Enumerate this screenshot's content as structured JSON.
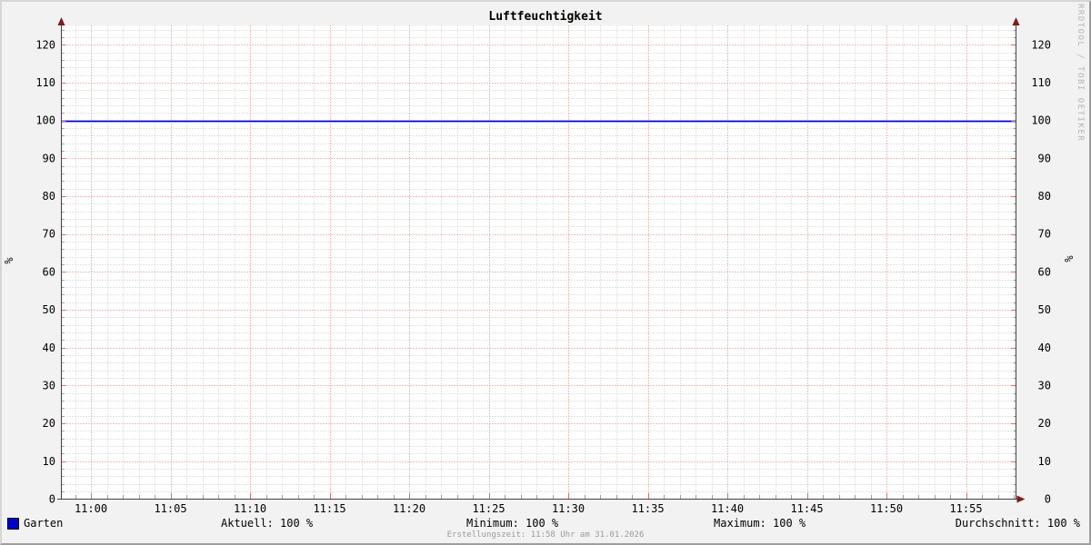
{
  "title": "Luftfeuchtigkeit",
  "watermark": "RRDTOOL / TOBI OETIKER",
  "axis_unit_left": "%",
  "axis_unit_right": "%",
  "legend": {
    "series_label": "Garten",
    "series_color": "#0000cc"
  },
  "stats": {
    "aktuell": "Aktuell: 100 %",
    "minimum": "Minimum: 100 %",
    "maximum": "Maximum: 100 %",
    "durchschnitt": "Durchschnitt: 100 %"
  },
  "footer": "Erstellungszeit: 11:58 Uhr am 31.01.2026",
  "colors": {
    "background": "#f2f2f2",
    "canvas": "#ffffff",
    "minor_grid": "#c9c9c9",
    "major_grid": "#e08080",
    "minor_tick": "#a0a0a0",
    "major_tick": "#d87070",
    "axis": "#404040",
    "arrow": "#7d1b1b",
    "series": "#0000cc",
    "text": "#000000",
    "footer_text": "#9a9a9a",
    "watermark_text": "#b5b5b5"
  },
  "chart_data": {
    "type": "line",
    "title": "Luftfeuchtigkeit",
    "ylabel": "%",
    "ylim": [
      0,
      125
    ],
    "y_major_ticks": [
      0,
      10,
      20,
      30,
      40,
      50,
      60,
      70,
      80,
      90,
      100,
      110,
      120
    ],
    "y_minor_step": 2,
    "x_tick_labels": [
      "11:00",
      "11:05",
      "11:10",
      "11:15",
      "11:20",
      "11:25",
      "11:30",
      "11:35",
      "11:40",
      "11:45",
      "11:50",
      "11:55"
    ],
    "x_minor_step_minutes": 1,
    "x_major_step_minutes": 5,
    "x_window": [
      "10:58",
      "11:58"
    ],
    "grid": true,
    "legend_position": "bottom",
    "series": [
      {
        "name": "Garten",
        "color": "#0000cc",
        "value": 100
      }
    ],
    "series_stats": {
      "aktuell": 100,
      "minimum": 100,
      "maximum": 100,
      "durchschnitt": 100
    }
  }
}
